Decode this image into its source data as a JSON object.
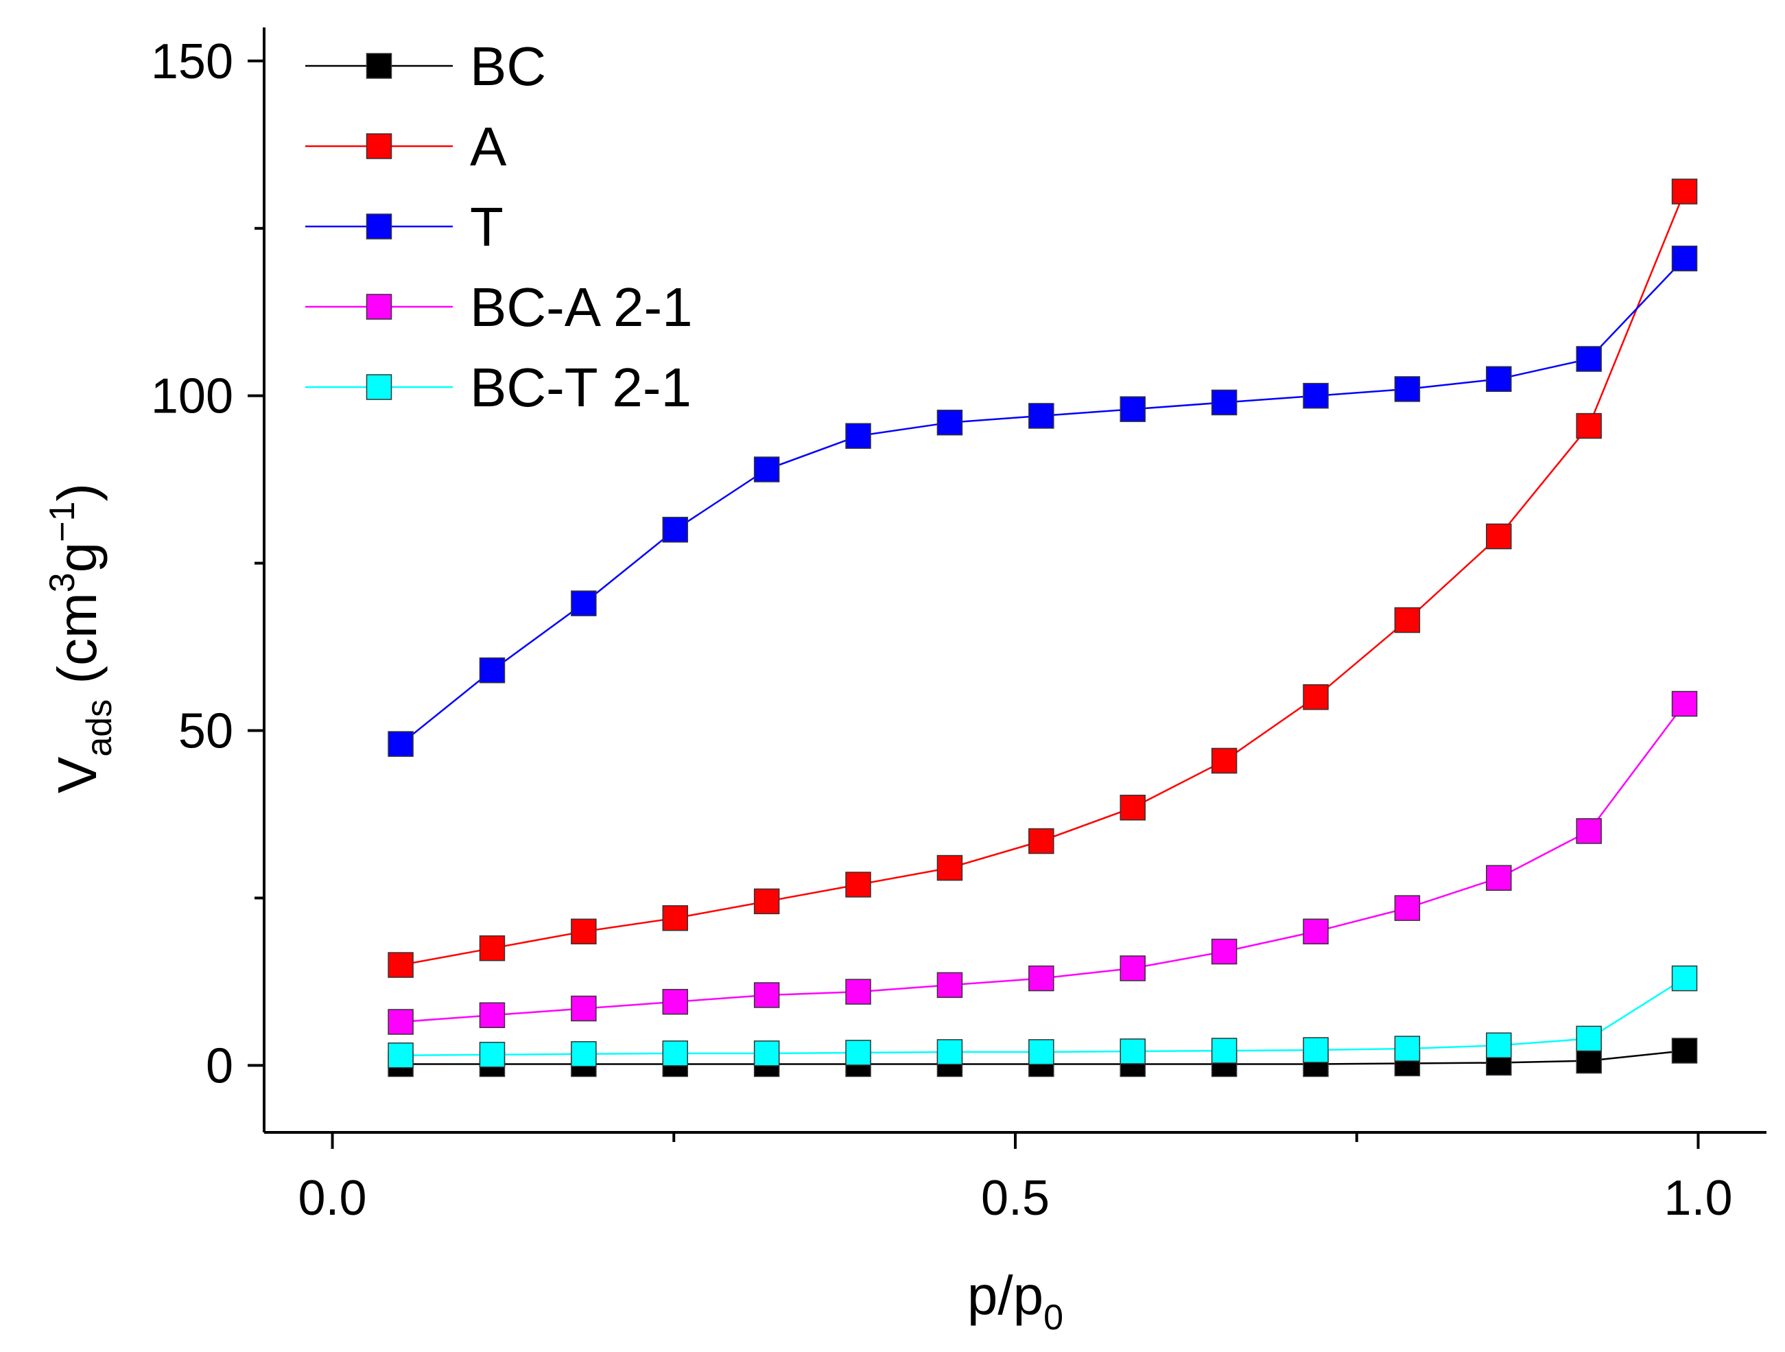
{
  "chart_data": {
    "type": "line",
    "title": "",
    "xlabel": {
      "main": "p/p",
      "sub": "0"
    },
    "ylabel": {
      "main": "V",
      "sub": "ads",
      "rest": " (cm",
      "sup1": "3",
      "mid": "g",
      "sup2": "−1",
      "end": ")"
    },
    "xlim": [
      -0.05,
      1.05
    ],
    "ylim": [
      -10,
      155
    ],
    "x_ticks": [
      {
        "value": 0.0,
        "label": "0.0"
      },
      {
        "value": 0.5,
        "label": "0.5"
      },
      {
        "value": 1.0,
        "label": "1.0"
      }
    ],
    "x_minor_ticks": [
      0.25,
      0.75
    ],
    "y_ticks": [
      {
        "value": 0,
        "label": "0"
      },
      {
        "value": 50,
        "label": "50"
      },
      {
        "value": 100,
        "label": "100"
      },
      {
        "value": 150,
        "label": "150"
      }
    ],
    "y_minor_ticks": [
      25,
      75,
      125
    ],
    "legend_position": "top-left",
    "x": [
      0.05,
      0.117,
      0.184,
      0.251,
      0.318,
      0.385,
      0.452,
      0.519,
      0.586,
      0.653,
      0.72,
      0.787,
      0.854,
      0.92,
      0.99
    ],
    "series": [
      {
        "name": "BC",
        "color": "#000000",
        "values": [
          0.2,
          0.2,
          0.2,
          0.2,
          0.2,
          0.2,
          0.2,
          0.2,
          0.2,
          0.2,
          0.2,
          0.3,
          0.4,
          0.7,
          2.2
        ]
      },
      {
        "name": "A",
        "color": "#ff0000",
        "values": [
          15.0,
          17.5,
          20.0,
          22.0,
          24.5,
          27.0,
          29.5,
          33.5,
          38.5,
          45.5,
          55.0,
          66.5,
          79.0,
          95.5,
          130.5
        ]
      },
      {
        "name": "T",
        "color": "#0000ff",
        "values": [
          48.0,
          59.0,
          69.0,
          80.0,
          89.0,
          94.0,
          96.0,
          97.0,
          98.0,
          99.0,
          100.0,
          101.0,
          102.5,
          105.5,
          120.5
        ]
      },
      {
        "name": "BC-A 2-1",
        "color": "#ff00ff",
        "values": [
          6.5,
          7.5,
          8.5,
          9.5,
          10.5,
          11.0,
          12.0,
          13.0,
          14.5,
          17.0,
          20.0,
          23.5,
          28.0,
          35.0,
          54.0
        ]
      },
      {
        "name": "BC-T 2-1",
        "color": "#00ffff",
        "values": [
          1.5,
          1.6,
          1.7,
          1.8,
          1.8,
          1.9,
          2.0,
          2.0,
          2.1,
          2.2,
          2.3,
          2.5,
          3.0,
          4.0,
          13.0
        ]
      }
    ]
  }
}
